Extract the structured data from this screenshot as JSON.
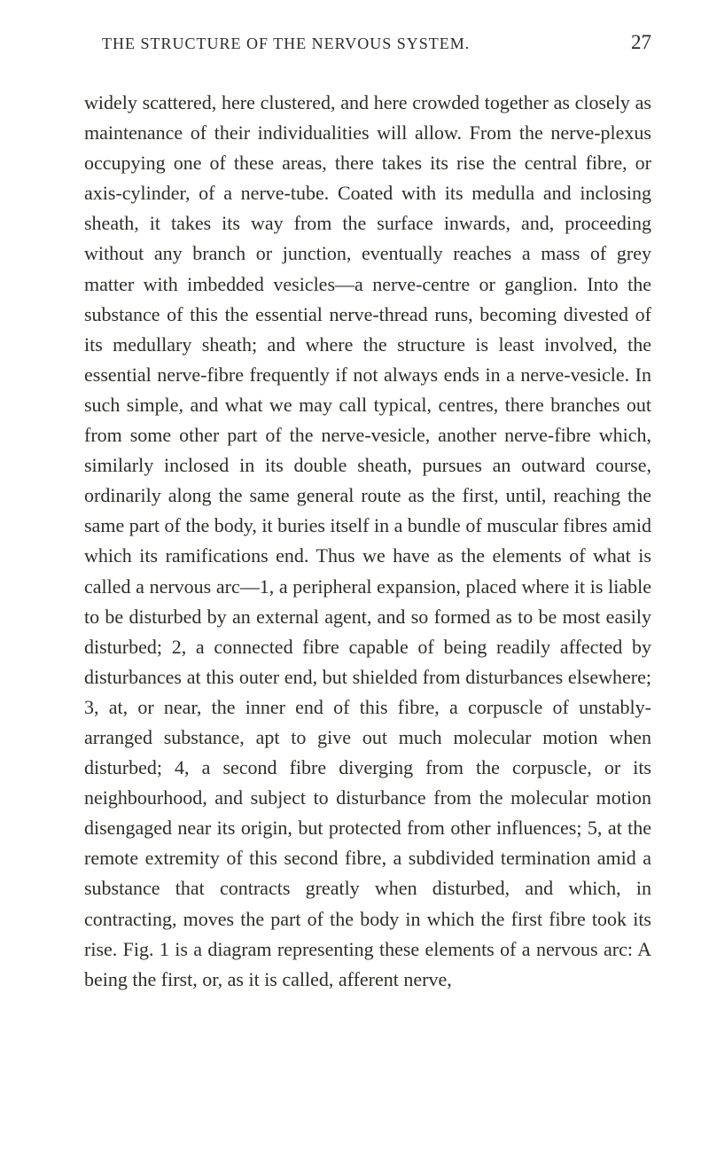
{
  "header": {
    "title": "THE STRUCTURE OF THE NERVOUS SYSTEM.",
    "page": "27"
  },
  "body": {
    "paragraph": "widely scattered, here clustered, and here crowded together as closely as maintenance of their individualities will allow. From the nerve-plexus occupying one of these areas, there takes its rise the central fibre, or axis-cylinder, of a nerve-tube. Coated with its medulla and inclosing sheath, it takes its way from the surface inwards, and, proceeding without any branch or junction, eventually reaches a mass of grey matter with imbedded vesicles—a nerve-centre or ganglion. Into the substance of this the essential nerve-thread runs, becoming divested of its medullary sheath; and where the structure is least involved, the essential nerve-fibre frequently if not always ends in a nerve-vesicle. In such simple, and what we may call typical, centres, there branches out from some other part of the nerve-vesicle, another nerve-fibre which, similarly inclosed in its double sheath, pursues an outward course, ordinarily along the same general route as the first, until, reaching the same part of the body, it buries itself in a bundle of muscular fibres amid which its ramifications end. Thus we have as the elements of what is called a nervous arc—1, a peripheral expansion, placed where it is liable to be disturbed by an external agent, and so formed as to be most easily disturbed; 2, a connected fibre capable of being readily affected by disturbances at this outer end, but shielded from disturbances elsewhere; 3, at, or near, the inner end of this fibre, a corpuscle of unstably-arranged substance, apt to give out much molecular motion when disturbed; 4, a second fibre diverging from the corpuscle, or its neighbourhood, and subject to disturbance from the molecular motion disengaged near its origin, but protected from other influences; 5, at the remote extremity of this second fibre, a subdivided termination amid a substance that contracts greatly when disturbed, and which, in contracting, moves the part of the body in which the first fibre took its rise. Fig. 1 is a diagram representing these elements of a nervous arc: A being the first, or, as it is called, afferent nerve,"
  }
}
